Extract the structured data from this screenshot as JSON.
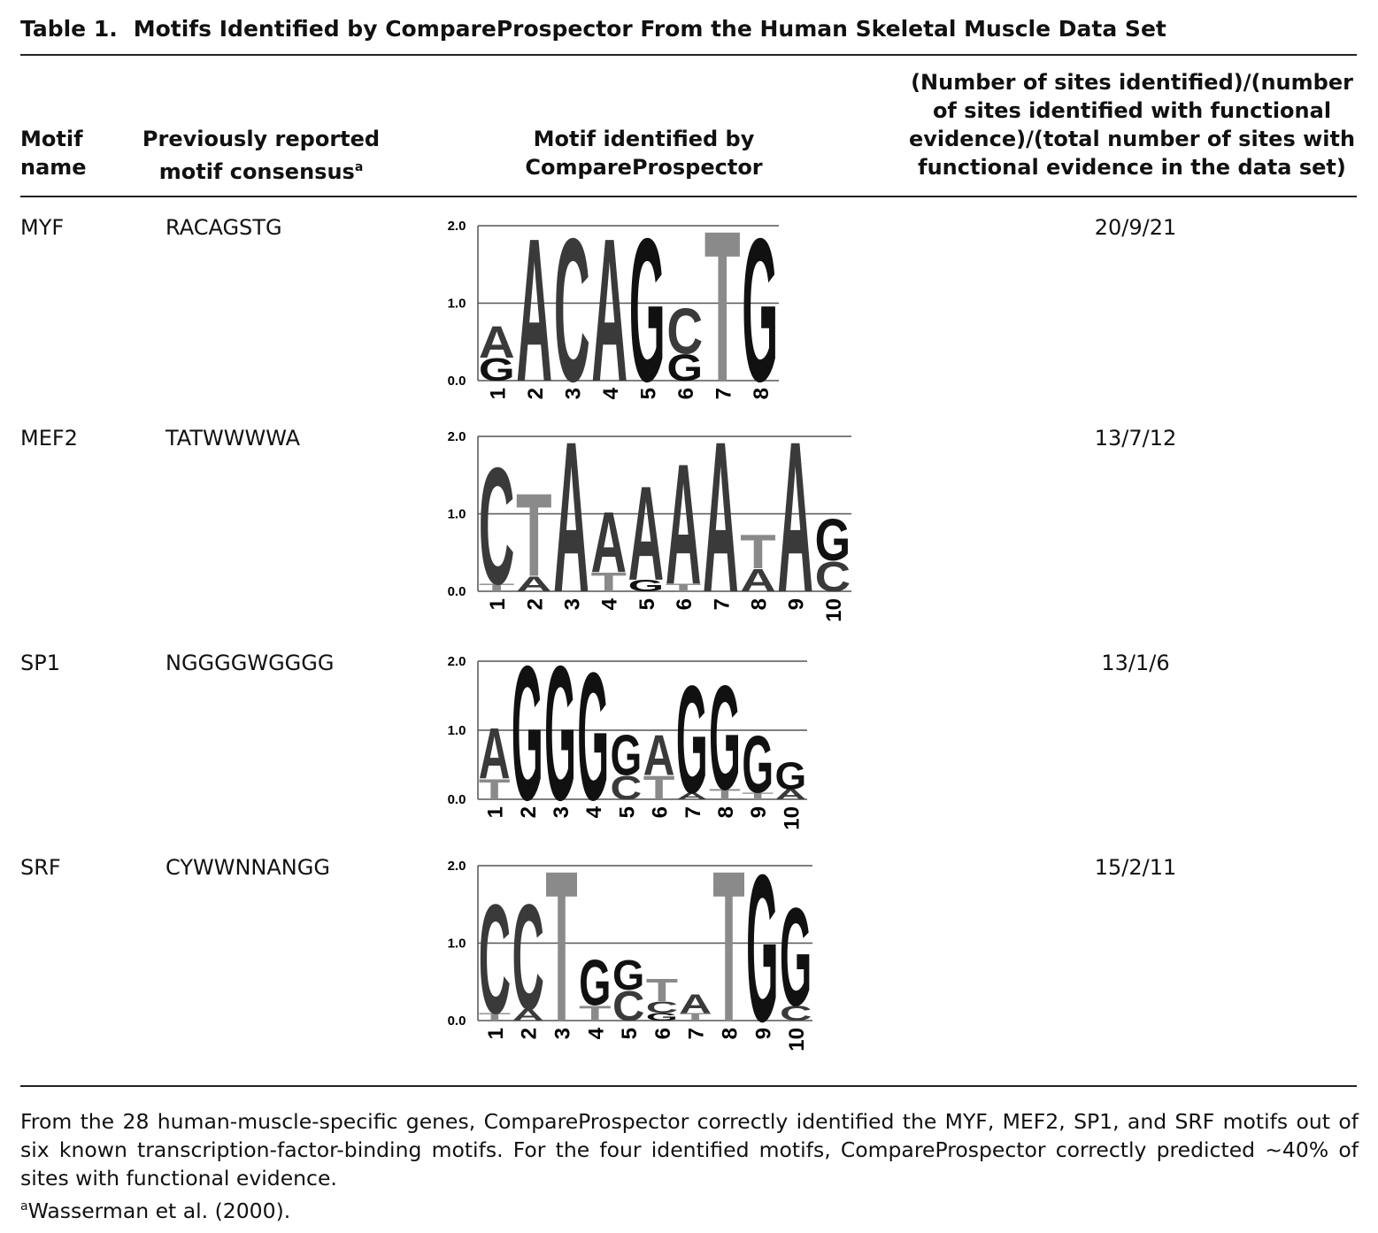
{
  "table": {
    "label": "Table 1.",
    "title": "Motifs Identified by CompareProspector From the Human Skeletal Muscle Data Set",
    "headers": [
      "Motif name",
      "Previously reported motif consensus",
      "Motif identified by CompareProspector",
      "(Number of sites identified)/(number of sites identified with functional evidence)/(total number of sites with functional evidence in the data set)"
    ],
    "header_note": "a",
    "logo_axis": {
      "ylim": [
        0,
        2
      ],
      "yticks": [
        {
          "value": 0,
          "label": "0.0"
        },
        {
          "value": 1,
          "label": "1.0"
        },
        {
          "value": 2,
          "label": "2.0"
        }
      ]
    },
    "letter_colors": {
      "A": "#3a3a3a",
      "C": "#3a3a3a",
      "G": "#111111",
      "T": "#8a8a8a"
    },
    "rows": [
      {
        "name": "MYF",
        "consensus": "RACAGSTG",
        "counts": "20/9/21",
        "logo": [
          {
            "position": "1",
            "letters": [
              {
                "letter": "G",
                "height": 0.3
              },
              {
                "letter": "A",
                "height": 0.42
              }
            ]
          },
          {
            "position": "2",
            "letters": [
              {
                "letter": "A",
                "height": 1.9
              }
            ]
          },
          {
            "position": "3",
            "letters": [
              {
                "letter": "C",
                "height": 1.9
              }
            ]
          },
          {
            "position": "4",
            "letters": [
              {
                "letter": "A",
                "height": 1.9
              }
            ]
          },
          {
            "position": "5",
            "letters": [
              {
                "letter": "G",
                "height": 1.9
              }
            ]
          },
          {
            "position": "6",
            "letters": [
              {
                "letter": "G",
                "height": 0.35
              },
              {
                "letter": "C",
                "height": 0.6
              }
            ]
          },
          {
            "position": "7",
            "letters": [
              {
                "letter": "T",
                "height": 2.0
              }
            ]
          },
          {
            "position": "8",
            "letters": [
              {
                "letter": "G",
                "height": 1.9
              }
            ]
          }
        ]
      },
      {
        "name": "MEF2",
        "consensus": "TATWWWWA",
        "counts": "13/7/12",
        "logo": [
          {
            "position": "1",
            "letters": [
              {
                "letter": "T",
                "height": 0.1
              },
              {
                "letter": "C",
                "height": 1.55
              }
            ]
          },
          {
            "position": "2",
            "letters": [
              {
                "letter": "A",
                "height": 0.2
              },
              {
                "letter": "T",
                "height": 1.1
              }
            ]
          },
          {
            "position": "3",
            "letters": [
              {
                "letter": "A",
                "height": 2.0
              }
            ]
          },
          {
            "position": "4",
            "letters": [
              {
                "letter": "T",
                "height": 0.25
              },
              {
                "letter": "A",
                "height": 0.8
              }
            ]
          },
          {
            "position": "5",
            "letters": [
              {
                "letter": "G",
                "height": 0.15
              },
              {
                "letter": "A",
                "height": 1.25
              }
            ]
          },
          {
            "position": "6",
            "letters": [
              {
                "letter": "T",
                "height": 0.1
              },
              {
                "letter": "A",
                "height": 1.6
              }
            ]
          },
          {
            "position": "7",
            "letters": [
              {
                "letter": "A",
                "height": 2.0
              }
            ]
          },
          {
            "position": "8",
            "letters": [
              {
                "letter": "A",
                "height": 0.3
              },
              {
                "letter": "T",
                "height": 0.45
              }
            ]
          },
          {
            "position": "9",
            "letters": [
              {
                "letter": "A",
                "height": 2.0
              }
            ]
          },
          {
            "position": "10",
            "letters": [
              {
                "letter": "C",
                "height": 0.4
              },
              {
                "letter": "G",
                "height": 0.55
              }
            ]
          }
        ]
      },
      {
        "name": "SP1",
        "consensus": "NGGGGWGGGG",
        "counts": "13/1/6",
        "logo": [
          {
            "position": "1",
            "letters": [
              {
                "letter": "T",
                "height": 0.3
              },
              {
                "letter": "A",
                "height": 0.75
              }
            ]
          },
          {
            "position": "2",
            "letters": [
              {
                "letter": "G",
                "height": 2.0
              }
            ]
          },
          {
            "position": "3",
            "letters": [
              {
                "letter": "G",
                "height": 2.0
              }
            ]
          },
          {
            "position": "4",
            "letters": [
              {
                "letter": "G",
                "height": 1.9
              }
            ]
          },
          {
            "position": "5",
            "letters": [
              {
                "letter": "C",
                "height": 0.35
              },
              {
                "letter": "G",
                "height": 0.6
              }
            ]
          },
          {
            "position": "6",
            "letters": [
              {
                "letter": "T",
                "height": 0.35
              },
              {
                "letter": "A",
                "height": 0.6
              }
            ]
          },
          {
            "position": "7",
            "letters": [
              {
                "letter": "A",
                "height": 0.1
              },
              {
                "letter": "G",
                "height": 1.6
              }
            ]
          },
          {
            "position": "8",
            "letters": [
              {
                "letter": "T",
                "height": 0.15
              },
              {
                "letter": "G",
                "height": 1.55
              }
            ]
          },
          {
            "position": "9",
            "letters": [
              {
                "letter": "T",
                "height": 0.1
              },
              {
                "letter": "G",
                "height": 0.85
              }
            ]
          },
          {
            "position": "10",
            "letters": [
              {
                "letter": "A",
                "height": 0.15
              },
              {
                "letter": "G",
                "height": 0.4
              }
            ]
          }
        ]
      },
      {
        "name": "SRF",
        "consensus": "CYWWNNANGG",
        "counts": "15/2/11",
        "logo": [
          {
            "position": "1",
            "letters": [
              {
                "letter": "T",
                "height": 0.1
              },
              {
                "letter": "C",
                "height": 1.45
              }
            ]
          },
          {
            "position": "2",
            "letters": [
              {
                "letter": "A",
                "height": 0.15
              },
              {
                "letter": "C",
                "height": 1.4
              }
            ]
          },
          {
            "position": "3",
            "letters": [
              {
                "letter": "T",
                "height": 2.0
              }
            ]
          },
          {
            "position": "4",
            "letters": [
              {
                "letter": "T",
                "height": 0.2
              },
              {
                "letter": "G",
                "height": 0.6
              }
            ]
          },
          {
            "position": "5",
            "letters": [
              {
                "letter": "C",
                "height": 0.4
              },
              {
                "letter": "G",
                "height": 0.4
              }
            ]
          },
          {
            "position": "6",
            "letters": [
              {
                "letter": "G",
                "height": 0.1
              },
              {
                "letter": "C",
                "height": 0.15
              },
              {
                "letter": "T",
                "height": 0.3
              }
            ]
          },
          {
            "position": "7",
            "letters": [
              {
                "letter": "T",
                "height": 0.1
              },
              {
                "letter": "A",
                "height": 0.25
              }
            ]
          },
          {
            "position": "8",
            "letters": [
              {
                "letter": "T",
                "height": 2.0
              }
            ]
          },
          {
            "position": "9",
            "letters": [
              {
                "letter": "G",
                "height": 1.95
              }
            ]
          },
          {
            "position": "10",
            "letters": [
              {
                "letter": "C",
                "height": 0.2
              },
              {
                "letter": "G",
                "height": 1.3
              }
            ]
          }
        ]
      }
    ]
  },
  "footnote": {
    "text": "From the 28 human-muscle-specific genes, CompareProspector correctly identified the MYF, MEF2, SP1, and SRF motifs out of six known transcription-factor-binding motifs. For the four identified motifs, CompareProspector correctly predicted ~40% of sites with functional evidence.",
    "ref_mark": "a",
    "ref": "Wasserman et al. (2000)."
  }
}
